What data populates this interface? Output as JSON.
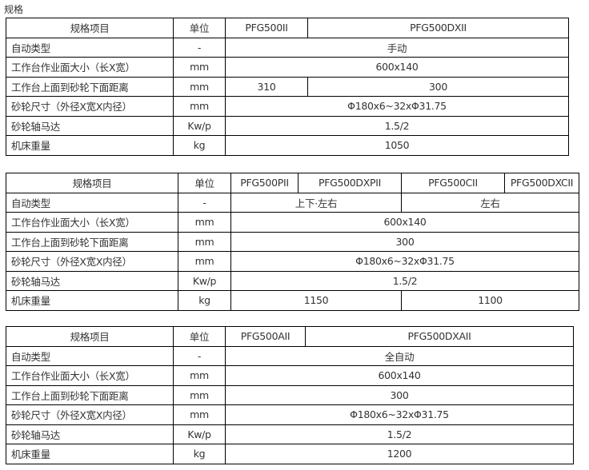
{
  "title": "规格",
  "rows": [
    "规格项目",
    "单位",
    "自动类型",
    "工作台作业面大小（长X宽）",
    "工作台上面到砂轮下面距离",
    "砂轮尺寸（外径X宽X内径）",
    "砂轮轴马达",
    "机床重量"
  ],
  "units": [
    "-",
    "mm",
    "mm",
    "mm",
    "Kw/p",
    "kg"
  ],
  "t1": {
    "models": [
      "PFG500II",
      "PFG500DXII"
    ],
    "type": "手动",
    "size": "600x140",
    "dist": [
      "310",
      "300"
    ],
    "wheel": "Φ180x6~32xΦ31.75",
    "motor": "1.5/2",
    "weight": "1050"
  },
  "t2": {
    "models": [
      "PFG500PII",
      "PFG500DXPII",
      "PFG500CII",
      "PFG500DXCII"
    ],
    "type": [
      "上下·左右",
      "左右"
    ],
    "size": "600x140",
    "dist": "300",
    "wheel": "Φ180x6~32xΦ31.75",
    "motor": "1.5/2",
    "weight": [
      "1150",
      "1100"
    ]
  },
  "t3": {
    "models": [
      "PFG500AII",
      "PFG500DXAII"
    ],
    "type": "全自动",
    "size": "600x140",
    "dist": "300",
    "wheel": "Φ180x6~32xΦ31.75",
    "motor": "1.5/2",
    "weight": "1200"
  }
}
